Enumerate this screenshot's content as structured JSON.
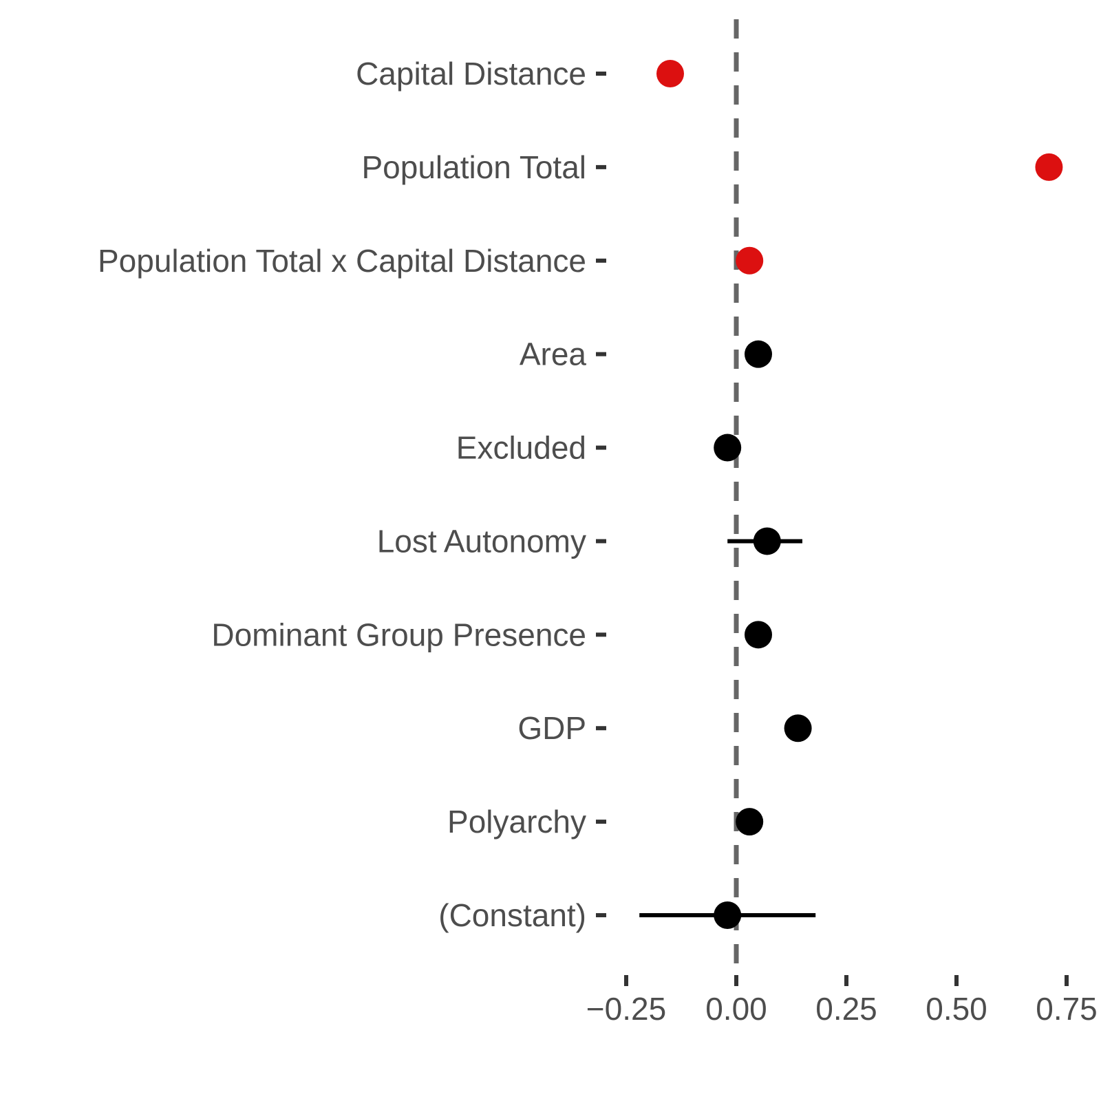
{
  "chart_data": {
    "type": "scatter",
    "subtype": "dot-whisker-coefficient-plot",
    "title": "",
    "xlabel": "",
    "ylabel": "",
    "legend": "none",
    "grid": false,
    "categories": [
      "Capital Distance",
      "Population Total",
      "Population Total x Capital Distance",
      "Area",
      "Excluded",
      "Lost Autonomy",
      "Dominant Group Presence",
      "GDP",
      "Polyarchy",
      "(Constant)"
    ],
    "estimates": [
      -0.15,
      0.71,
      0.03,
      0.05,
      -0.02,
      0.07,
      0.05,
      0.14,
      0.03,
      -0.02
    ],
    "ci_low": [
      null,
      null,
      null,
      null,
      null,
      -0.02,
      null,
      null,
      null,
      -0.22
    ],
    "ci_high": [
      null,
      null,
      null,
      null,
      null,
      0.15,
      null,
      null,
      null,
      0.18
    ],
    "significant": [
      true,
      true,
      true,
      false,
      false,
      false,
      false,
      false,
      false,
      false
    ],
    "colors": {
      "significant_dot": "#DC1010",
      "nonsignificant_dot": "#000000",
      "error_bar": "#000000",
      "zero_line": "#666666",
      "axis_text": "#4D4D4D",
      "tick_mark": "#333333",
      "background": "#FFFFFF"
    },
    "zero_line": {
      "x": 0.0,
      "style": "dashed"
    },
    "xticks": {
      "values": [
        -0.25,
        0.0,
        0.25,
        0.5,
        0.75
      ],
      "labels": [
        "−0.25",
        "0.00",
        "0.25",
        "0.50",
        "0.75"
      ]
    },
    "xlim": [
      -0.2953,
      0.8281
    ]
  }
}
